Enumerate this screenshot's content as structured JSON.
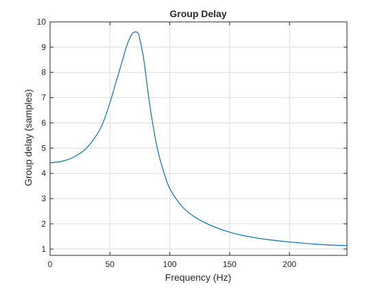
{
  "chart_data": {
    "type": "line",
    "title": "Group Delay",
    "xlabel": "Frequency (Hz)",
    "ylabel": "Group delay (samples)",
    "xlim": [
      0,
      248
    ],
    "ylim": [
      0.75,
      10
    ],
    "xticks": [
      0,
      50,
      100,
      150,
      200
    ],
    "yticks": [
      1,
      2,
      3,
      4,
      5,
      6,
      7,
      8,
      9,
      10
    ],
    "grid": true,
    "series": [
      {
        "color": "#0072bd",
        "x": [
          0,
          10,
          20,
          30,
          40,
          45,
          50,
          55,
          60,
          63,
          66,
          69,
          72,
          74,
          76,
          78,
          80,
          83,
          86,
          90,
          95,
          100,
          110,
          120,
          130,
          140,
          150,
          160,
          175,
          190,
          200,
          210,
          220,
          230,
          240,
          248
        ],
        "y": [
          4.42,
          4.48,
          4.65,
          4.98,
          5.6,
          6.1,
          6.8,
          7.6,
          8.4,
          8.9,
          9.3,
          9.55,
          9.6,
          9.5,
          9.1,
          8.6,
          7.9,
          6.8,
          5.9,
          4.9,
          4.05,
          3.4,
          2.7,
          2.3,
          2.03,
          1.83,
          1.67,
          1.55,
          1.42,
          1.33,
          1.28,
          1.24,
          1.2,
          1.17,
          1.15,
          1.14
        ]
      }
    ]
  }
}
